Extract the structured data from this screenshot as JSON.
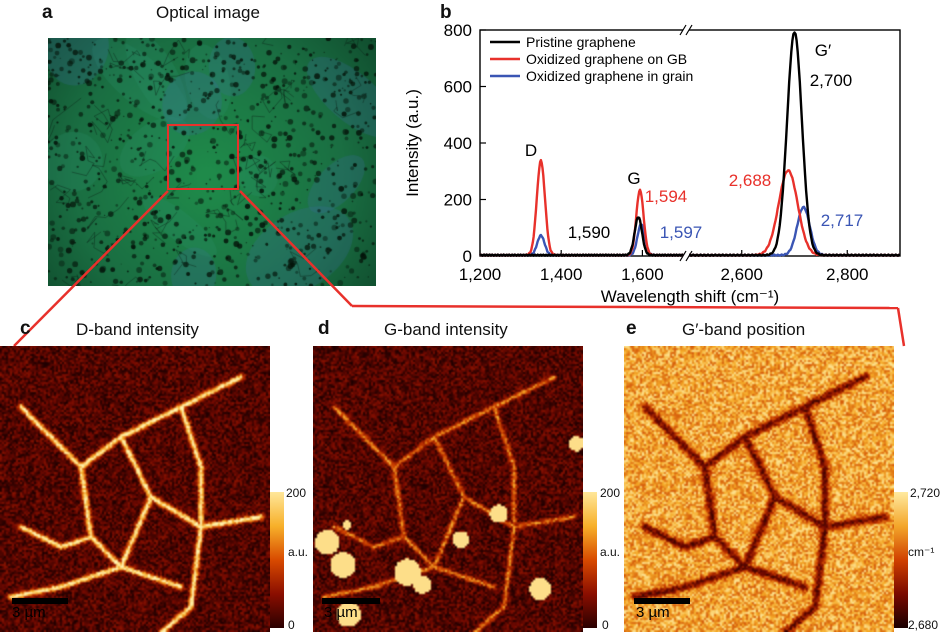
{
  "panels": {
    "a": {
      "letter": "a",
      "title": "Optical image"
    },
    "b": {
      "letter": "b"
    },
    "c": {
      "letter": "c",
      "title": "D-band intensity",
      "cbar_max": "200",
      "cbar_unit": "a.u.",
      "cbar_min": "0",
      "scale": "3 µm"
    },
    "d": {
      "letter": "d",
      "title": "G-band intensity",
      "cbar_max": "200",
      "cbar_unit": "a.u.",
      "cbar_min": "0",
      "scale": "3 µm"
    },
    "e": {
      "letter": "e",
      "title": "G′-band position",
      "cbar_max": "2,720",
      "cbar_unit": "cm⁻¹",
      "cbar_min": "2,680",
      "scale": "3 µm"
    }
  },
  "chart_data": {
    "type": "line",
    "xlabel": "Wavelength shift (cm⁻¹)",
    "ylabel": "Intensity (a.u.)",
    "ylim": [
      0,
      800
    ],
    "yticks": [
      "0",
      "200",
      "400",
      "600",
      "800"
    ],
    "xticks": [
      "1,200",
      "1,400",
      "1,600",
      "2,600",
      "2,800"
    ],
    "x_break": [
      1700,
      2500
    ],
    "series": [
      {
        "name": "Pristine graphene",
        "color": "#000000",
        "peaks": [
          {
            "x": 1590,
            "y": 135,
            "w": 9
          },
          {
            "x": 2700,
            "y": 790,
            "w": 14
          }
        ]
      },
      {
        "name": "Oxidized graphene on GB",
        "color": "#e8312b",
        "peaks": [
          {
            "x": 1350,
            "y": 335,
            "w": 10
          },
          {
            "x": 1594,
            "y": 230,
            "w": 9
          },
          {
            "x": 2688,
            "y": 300,
            "w": 18
          }
        ]
      },
      {
        "name": "Oxidized graphene in grain",
        "color": "#3a55b4",
        "peaks": [
          {
            "x": 1350,
            "y": 70,
            "w": 9
          },
          {
            "x": 1597,
            "y": 110,
            "w": 9
          },
          {
            "x": 2717,
            "y": 170,
            "w": 12
          }
        ]
      }
    ],
    "annotations": [
      {
        "text": "D",
        "color": "#000000"
      },
      {
        "text": "G",
        "color": "#000000"
      },
      {
        "text": "G′",
        "color": "#000000"
      },
      {
        "text": "2,700",
        "color": "#000000"
      },
      {
        "text": "1,590",
        "color": "#000000"
      },
      {
        "text": "1,594",
        "color": "#e8312b"
      },
      {
        "text": "1,597",
        "color": "#3a55b4"
      },
      {
        "text": "2,688",
        "color": "#e8312b"
      },
      {
        "text": "2,717",
        "color": "#3a55b4"
      }
    ]
  },
  "colors": {
    "zoom_box": "#e8312b",
    "connector": "#e8312b"
  }
}
